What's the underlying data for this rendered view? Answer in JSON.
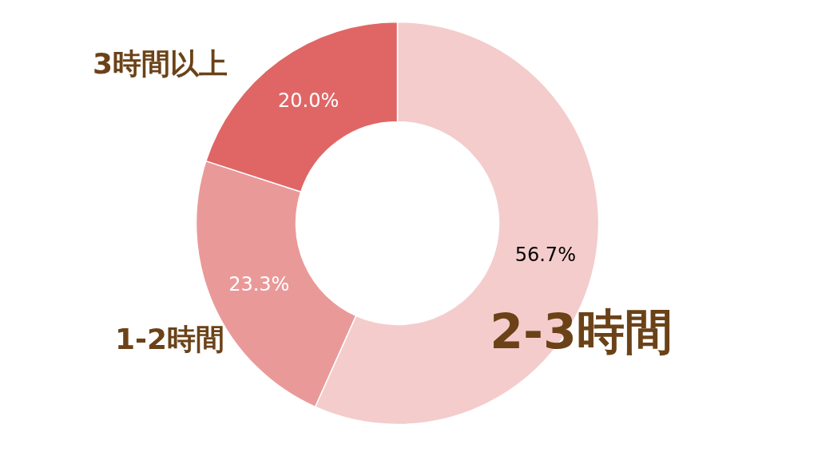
{
  "chart_data": {
    "type": "donut",
    "categories": [
      "2-3時間",
      "1-2時間",
      "3時間以上"
    ],
    "values": [
      56.7,
      23.3,
      20.0
    ],
    "colors": [
      "#f4cccc",
      "#ea9999",
      "#e06666"
    ],
    "value_labels": [
      "56.7%",
      "23.3%",
      "20.0%"
    ]
  }
}
